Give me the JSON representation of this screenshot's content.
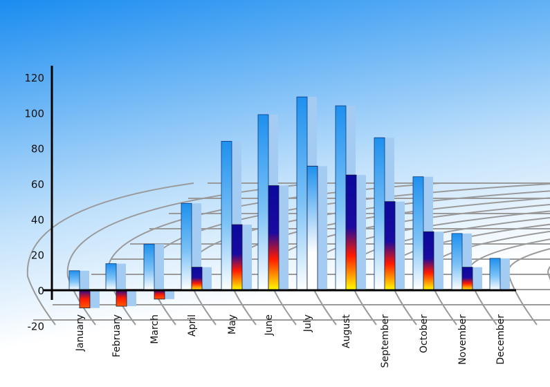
{
  "chart_data": {
    "type": "bar",
    "title": "",
    "xlabel": "",
    "ylabel": "",
    "ylim": [
      -20,
      120
    ],
    "yticks": [
      -20,
      0,
      20,
      40,
      60,
      80,
      100,
      120
    ],
    "categories": [
      "January",
      "February",
      "March",
      "April",
      "May",
      "June",
      "July",
      "August",
      "September",
      "October",
      "November",
      "December"
    ],
    "series": [
      {
        "values": [
          11,
          15,
          26,
          49,
          84,
          99,
          109,
          104,
          86,
          64,
          32,
          18
        ]
      },
      {
        "values": [
          -10,
          -9,
          -5,
          13,
          37,
          59,
          70,
          65,
          50,
          33,
          13,
          null
        ]
      }
    ],
    "grid": true,
    "legend": "none",
    "colors": {
      "background_top": "#1a8cf0",
      "series1": "#1e96f0",
      "series2_top": "#0a0a9a",
      "series2_mid": "#ff1a00",
      "series2_bottom": "#ffff00",
      "shadow": "#a4ccf2",
      "grid": "#9a9a9a"
    }
  }
}
